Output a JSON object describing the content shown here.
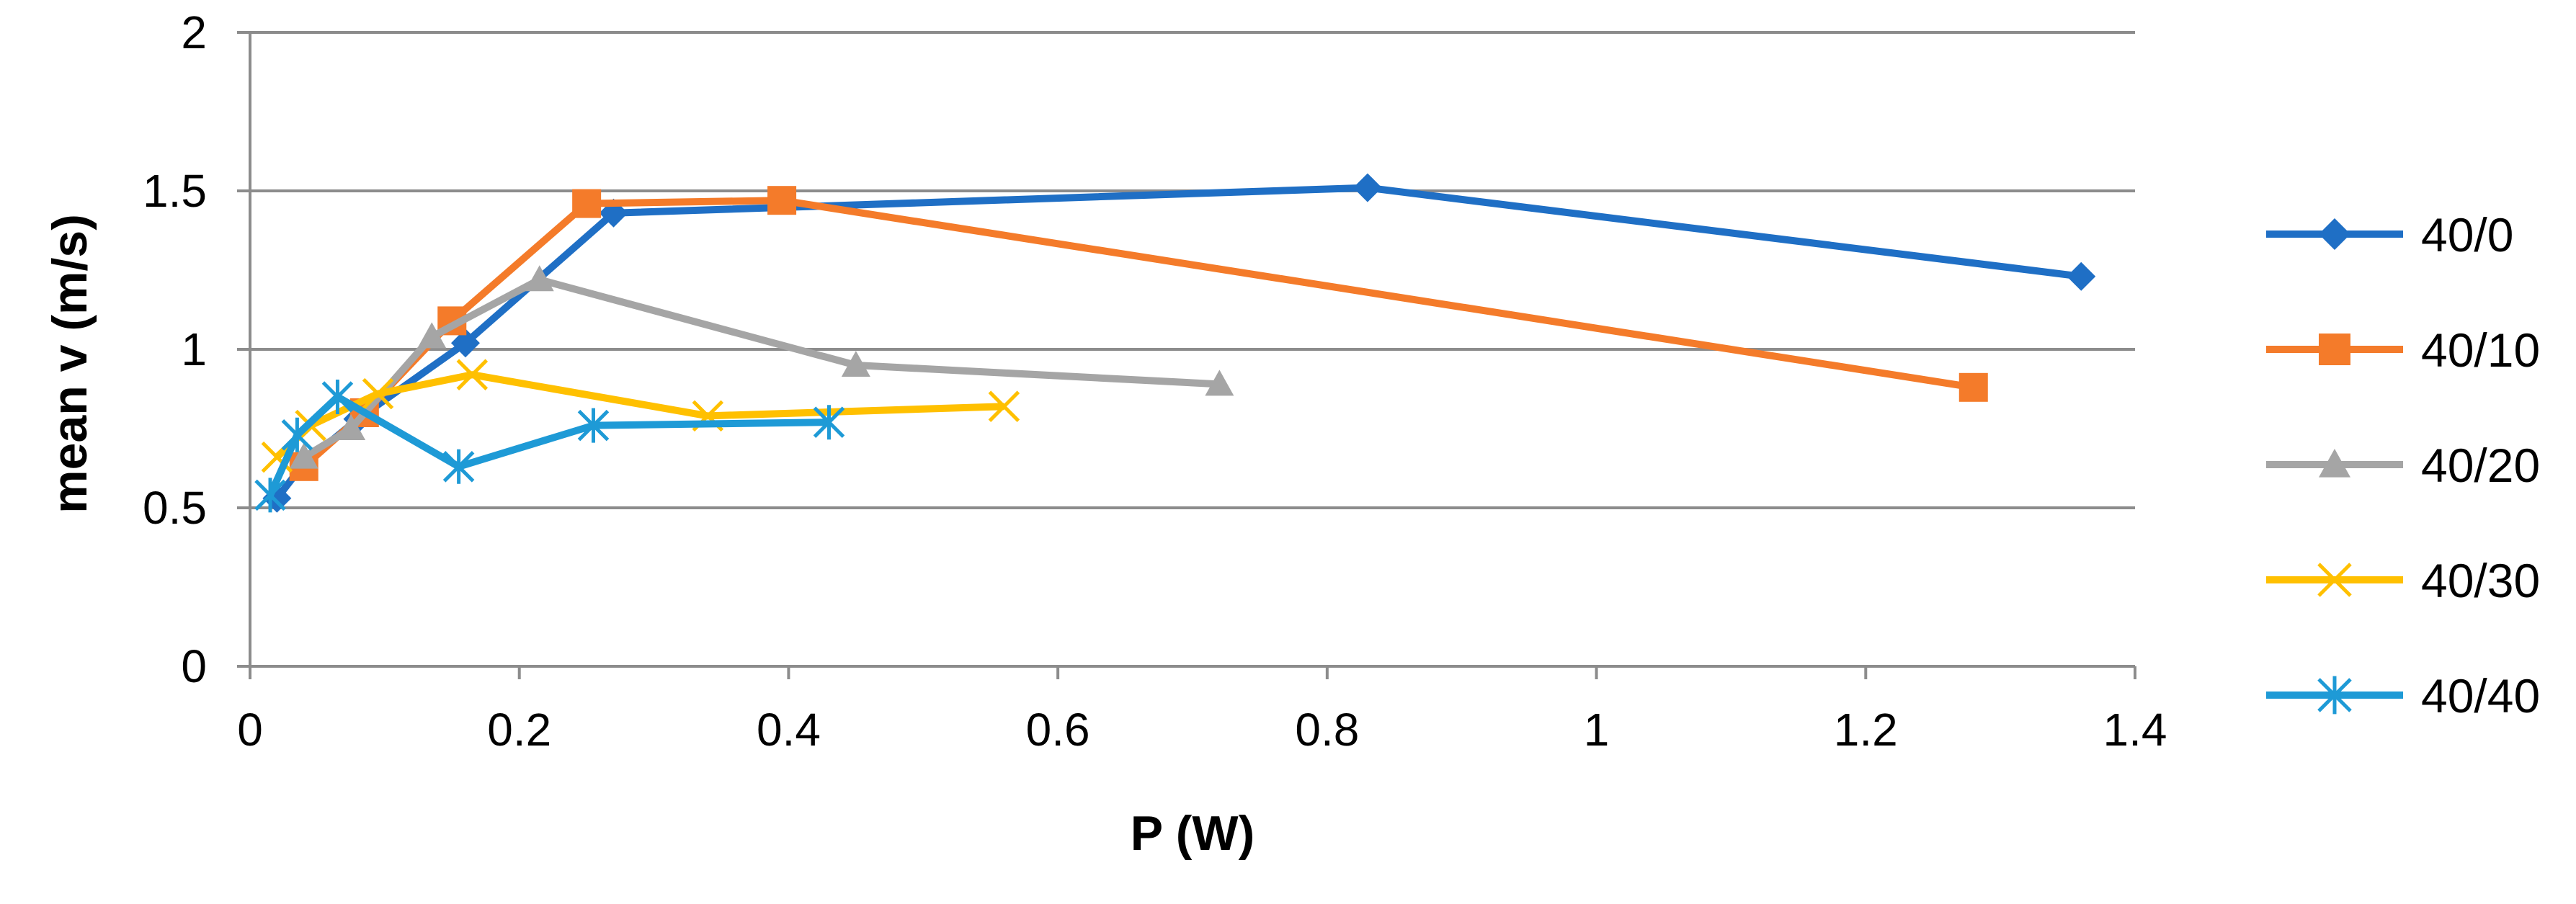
{
  "chart_data": {
    "type": "line",
    "title": "",
    "xlabel": "P (W)",
    "ylabel": "mean v (m/s)",
    "xlim": [
      0,
      1.4
    ],
    "ylim": [
      0,
      2
    ],
    "xticks": [
      0,
      0.2,
      0.4,
      0.6,
      0.8,
      1,
      1.2,
      1.4
    ],
    "xtick_labels": [
      "0",
      "0.2",
      "0.4",
      "0.6",
      "0.8",
      "1",
      "1.2",
      "1.4"
    ],
    "yticks": [
      0,
      0.5,
      1,
      1.5,
      2
    ],
    "ytick_labels": [
      "0",
      "0.5",
      "1",
      "1.5",
      "2"
    ],
    "grid": "horizontal",
    "legend_position": "right",
    "series": [
      {
        "name": "40/0",
        "color": "#1F6FC5",
        "marker": "diamond",
        "x": [
          0.02,
          0.04,
          0.08,
          0.16,
          0.27,
          0.83,
          1.36
        ],
        "y": [
          0.53,
          0.64,
          0.78,
          1.02,
          1.43,
          1.51,
          1.23
        ]
      },
      {
        "name": "40/10",
        "color": "#F47B2A",
        "marker": "square",
        "x": [
          0.04,
          0.085,
          0.15,
          0.25,
          0.395,
          1.28
        ],
        "y": [
          0.63,
          0.8,
          1.09,
          1.46,
          1.47,
          0.88
        ]
      },
      {
        "name": "40/20",
        "color": "#A5A5A5",
        "marker": "triangle",
        "x": [
          0.04,
          0.075,
          0.135,
          0.215,
          0.45,
          0.72
        ],
        "y": [
          0.66,
          0.75,
          1.04,
          1.22,
          0.95,
          0.89
        ]
      },
      {
        "name": "40/30",
        "color": "#FFC000",
        "marker": "x",
        "x": [
          0.02,
          0.045,
          0.095,
          0.165,
          0.34,
          0.56
        ],
        "y": [
          0.66,
          0.76,
          0.86,
          0.92,
          0.79,
          0.82
        ]
      },
      {
        "name": "40/40",
        "color": "#1E9AD6",
        "marker": "asterisk",
        "x": [
          0.015,
          0.035,
          0.065,
          0.155,
          0.255,
          0.43
        ],
        "y": [
          0.54,
          0.73,
          0.85,
          0.63,
          0.76,
          0.77
        ]
      }
    ]
  }
}
